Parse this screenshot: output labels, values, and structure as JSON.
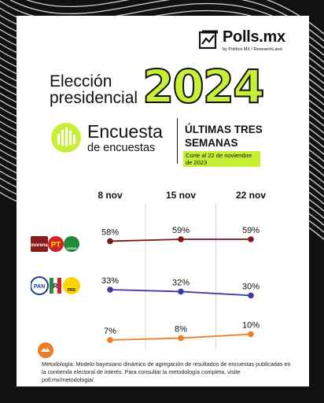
{
  "brand": {
    "name": "Polls.mx",
    "subtitle": "by Político MX / ResearchLand"
  },
  "title": {
    "line1": "Elección",
    "line2": "presidencial",
    "year": "2024"
  },
  "encuesta": {
    "line1": "Encuesta",
    "line2": "de encuestas"
  },
  "period": {
    "line1": "ÚLTIMAS TRES",
    "line2": "SEMANAS",
    "cutoff": "Corte al 22 de noviembre de 2023"
  },
  "colors": {
    "accent_green": "#c7ef35",
    "morena_line": "#7a1a1a",
    "pan_line": "#3a3aa8",
    "mc_line": "#ef7d22"
  },
  "chart_data": {
    "type": "line",
    "categories": [
      "8 nov",
      "15 nov",
      "22 nov"
    ],
    "ylim": [
      0,
      70
    ],
    "series": [
      {
        "name": "Morena-PT-PVEM",
        "color": "#7a1a1a",
        "values": [
          58,
          59,
          59
        ],
        "labels": [
          "58%",
          "59%",
          "59%"
        ]
      },
      {
        "name": "PAN-PRI-PRD",
        "color": "#3a3aa8",
        "values": [
          33,
          32,
          30
        ],
        "labels": [
          "33%",
          "32%",
          "30%"
        ]
      },
      {
        "name": "Movimiento Ciudadano",
        "color": "#ef7d22",
        "values": [
          7,
          8,
          10
        ],
        "labels": [
          "7%",
          "8%",
          "10%"
        ]
      }
    ]
  },
  "party_logos": {
    "morena": [
      "morena",
      "PT",
      "VERDE"
    ],
    "pan": [
      "PAN",
      "R",
      "PRD"
    ]
  },
  "methodology": "Metodología: Modelo bayesiano dinámico de agregación de resultados de encuestas publicadas en la contienda electoral de interés. Para consultar la metodología completa, visite poll.mx/metodologia/."
}
